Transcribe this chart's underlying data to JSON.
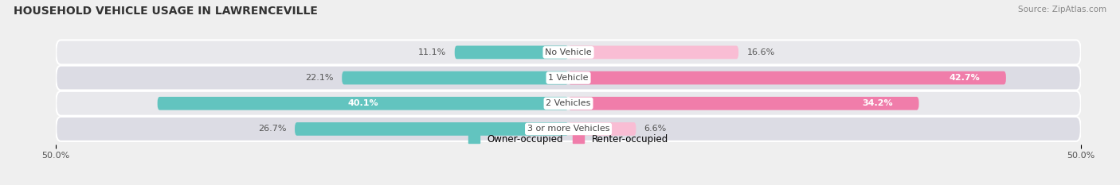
{
  "title": "HOUSEHOLD VEHICLE USAGE IN LAWRENCEVILLE",
  "source": "Source: ZipAtlas.com",
  "categories": [
    "No Vehicle",
    "1 Vehicle",
    "2 Vehicles",
    "3 or more Vehicles"
  ],
  "owner_values": [
    11.1,
    22.1,
    40.1,
    26.7
  ],
  "renter_values": [
    16.6,
    42.7,
    34.2,
    6.6
  ],
  "owner_color": "#62c4bf",
  "renter_color": "#f07daa",
  "renter_light_color": "#f9bdd4",
  "bg_color": "#efefef",
  "row_bg_colors": [
    "#e8e8ec",
    "#dcdce4"
  ],
  "xlim": 50.0,
  "legend_owner": "Owner-occupied",
  "legend_renter": "Renter-occupied",
  "title_fontsize": 10,
  "source_fontsize": 7.5,
  "label_fontsize": 8,
  "cat_fontsize": 8,
  "bar_height": 0.52,
  "owner_label_threshold": 35.0,
  "renter_label_threshold": 30.0
}
